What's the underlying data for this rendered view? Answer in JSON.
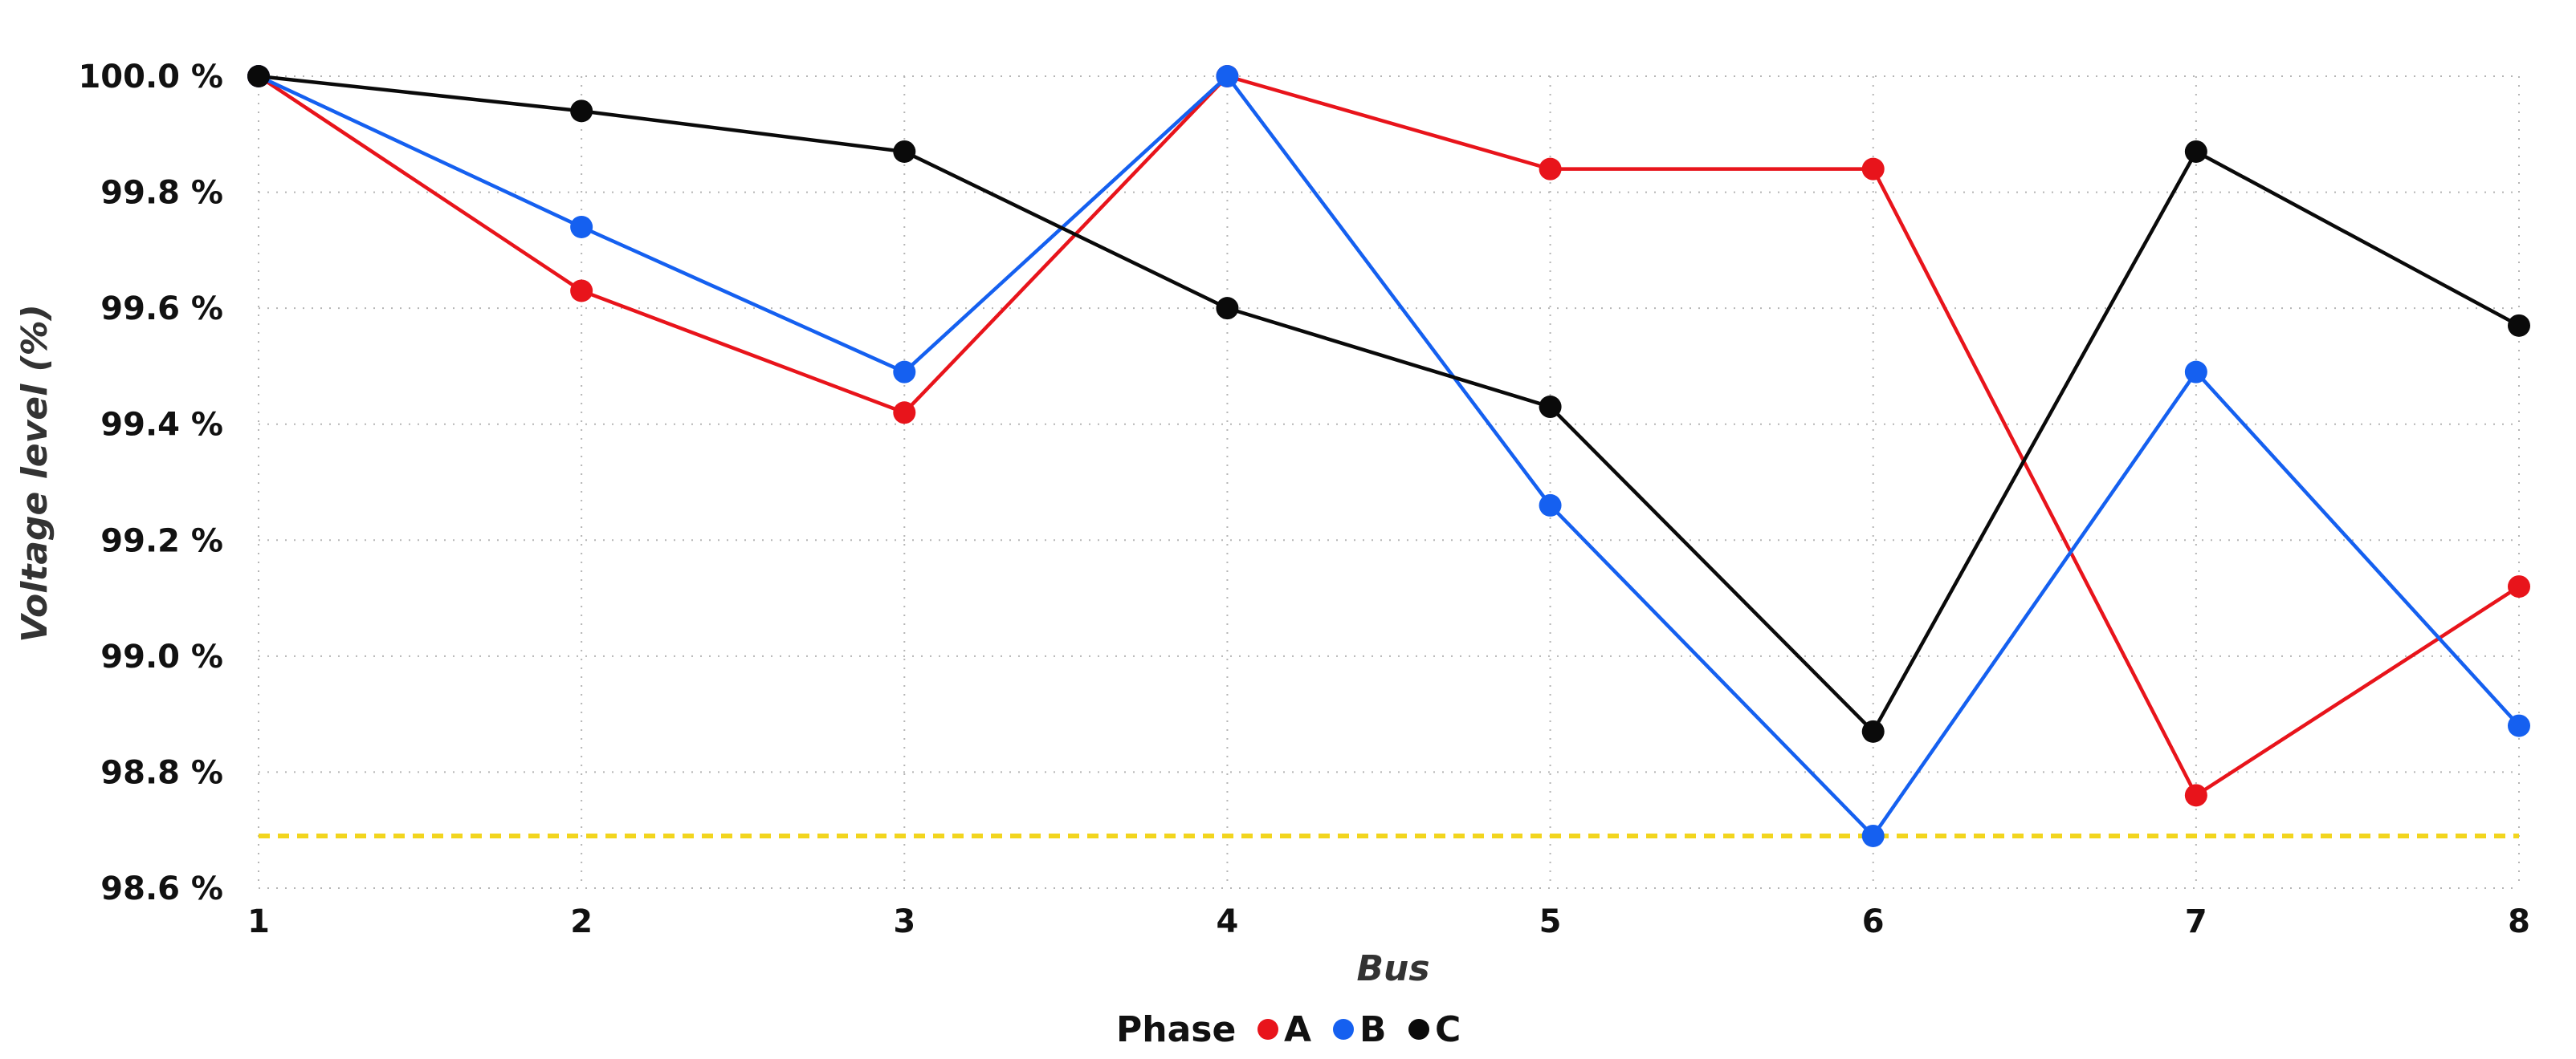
{
  "chart_data": {
    "type": "line",
    "title": "",
    "xlabel": "Bus",
    "ylabel": "Voltage level (%)",
    "x": [
      1,
      2,
      3,
      4,
      5,
      6,
      7,
      8
    ],
    "x_tick_labels": [
      "1",
      "2",
      "3",
      "4",
      "5",
      "6",
      "7",
      "8"
    ],
    "ylim": [
      98.6,
      100.0
    ],
    "y_ticks": [
      98.6,
      98.8,
      99.0,
      99.2,
      99.4,
      99.6,
      99.8,
      100.0
    ],
    "y_tick_labels": [
      "98.6 %",
      "98.8 %",
      "99.0 %",
      "99.2 %",
      "99.4 %",
      "99.6 %",
      "99.8 %",
      "100.0 %"
    ],
    "grid": true,
    "legend": {
      "title": "Phase",
      "position": "bottom-center"
    },
    "series": [
      {
        "name": "A",
        "color": "#e8141b",
        "values": [
          100.0,
          99.63,
          99.42,
          100.0,
          99.84,
          99.84,
          98.76,
          99.12
        ]
      },
      {
        "name": "B",
        "color": "#1560f0",
        "values": [
          100.0,
          99.74,
          99.49,
          100.0,
          99.26,
          98.69,
          99.49,
          98.88
        ]
      },
      {
        "name": "C",
        "color": "#0a0a0a",
        "values": [
          100.0,
          99.94,
          99.87,
          99.6,
          99.43,
          98.87,
          99.87,
          99.57
        ]
      }
    ],
    "reference_line": {
      "value": 98.69,
      "color": "#f2d51e",
      "style": "dashed"
    }
  }
}
